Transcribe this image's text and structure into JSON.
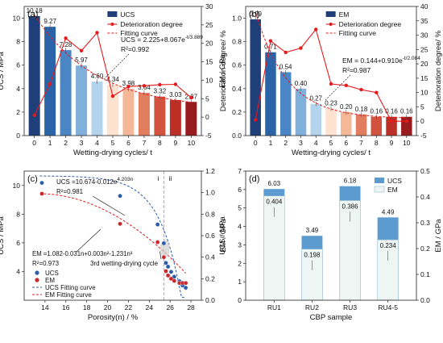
{
  "chart_data": [
    {
      "type": "bar",
      "panel": "(a)",
      "xlabel": "Wetting-drying cycles/ t",
      "ylabel": "UCS / MPa",
      "y2label": "Deterioration degree/ %",
      "categories": [
        0,
        1,
        2,
        3,
        4,
        5,
        6,
        7,
        8,
        9,
        10
      ],
      "ylim": [
        0,
        11
      ],
      "yticks": [
        0,
        2,
        4,
        6,
        8,
        10
      ],
      "y2lim": [
        -5,
        30
      ],
      "y2ticks": [
        -5,
        0,
        5,
        10,
        15,
        20,
        25,
        30
      ],
      "series": [
        {
          "name": "UCS",
          "values": [
            10.18,
            9.27,
            7.28,
            5.97,
            4.6,
            4.34,
            3.98,
            3.64,
            3.32,
            3.03,
            2.87
          ],
          "labels": [
            "10.18",
            "9.27",
            "7.28",
            "5.97",
            "4.60",
            "4.34",
            "3.98",
            "3.64",
            "3.32",
            "3.03",
            "2.87"
          ]
        },
        {
          "name": "Deterioration degree",
          "axis": "right",
          "values": [
            0.5,
            9.0,
            21.4,
            18.0,
            22.9,
            5.7,
            8.3,
            8.5,
            8.8,
            8.9,
            5.3
          ]
        },
        {
          "name": "Fitting curve",
          "formula": "UCS = 2.225+8.067e^(-t/3.889)"
        }
      ],
      "equation": "UCS = 2.225+8.067e",
      "equation_exp": "-t/3.889",
      "r2": "R²=0.992",
      "legend": "top-right"
    },
    {
      "type": "bar",
      "panel": "(b)",
      "xlabel": "Wetting-drying cycles/ t",
      "ylabel": "EM / GPa",
      "y2label": "Deterioration degree/ %",
      "categories": [
        0,
        1,
        2,
        3,
        4,
        5,
        6,
        7,
        8,
        9,
        10
      ],
      "ylim": [
        0,
        1.1
      ],
      "yticks": [
        0,
        0.2,
        0.4,
        0.6,
        0.8,
        1.0
      ],
      "y2lim": [
        -5,
        40
      ],
      "y2ticks": [
        -5,
        0,
        5,
        10,
        15,
        20,
        25,
        30,
        35,
        40
      ],
      "series": [
        {
          "name": "EM",
          "values": [
            0.99,
            0.71,
            0.54,
            0.4,
            0.27,
            0.23,
            0.2,
            0.18,
            0.16,
            0.16,
            0.16
          ],
          "labels": [
            "0.99",
            "0.71",
            "0.54",
            "0.40",
            "0.27",
            "0.23",
            "0.20",
            "0.18",
            "0.16",
            "0.16",
            "0.16"
          ]
        },
        {
          "name": "Deterioration degree",
          "axis": "right",
          "values": [
            0.5,
            28.0,
            24.0,
            25.5,
            32.0,
            13.0,
            12.5,
            11.0,
            10.0,
            0.0,
            0.0
          ]
        },
        {
          "name": "Fitting curve",
          "formula": "EM = 0.144+0.910e^(-t/2.084)"
        }
      ],
      "equation": "EM = 0.144+0.910e",
      "equation_exp": "-t/2.084",
      "r2": "R²=0.987",
      "legend": "top-right"
    },
    {
      "type": "scatter",
      "panel": "(c)",
      "xlabel": "Porosity(n) / %",
      "ylabel": "UCS / MPa",
      "y2label": "EM / GPa",
      "xlim": [
        12,
        29
      ],
      "xticks": [
        14,
        16,
        18,
        20,
        22,
        24,
        26,
        28
      ],
      "ylim": [
        2,
        11
      ],
      "yticks": [
        4,
        6,
        8,
        10
      ],
      "y2lim": [
        0,
        1.2
      ],
      "y2ticks": [
        0.0,
        0.2,
        0.4,
        0.6,
        0.8,
        1.0,
        1.2
      ],
      "series": [
        {
          "name": "UCS",
          "x": [
            13.7,
            21.2,
            24.8,
            25.4,
            25.6,
            25.8,
            26.1,
            26.4,
            26.9,
            27.2,
            27.5
          ],
          "y": [
            10.18,
            9.27,
            7.28,
            5.97,
            4.6,
            4.34,
            3.98,
            3.64,
            3.32,
            3.03,
            2.87
          ]
        },
        {
          "name": "EM",
          "axis": "right",
          "x": [
            13.7,
            21.2,
            24.8,
            25.4,
            25.6,
            25.8,
            26.1,
            26.4,
            26.9,
            27.2,
            27.5
          ],
          "y": [
            0.99,
            0.71,
            0.54,
            0.4,
            0.27,
            0.23,
            0.2,
            0.18,
            0.16,
            0.16,
            0.16
          ]
        },
        {
          "name": "UCS Fitting curve"
        },
        {
          "name": "EM Fitting curve"
        }
      ],
      "eq_ucs": "UCS =10.674-0.012e",
      "eq_ucs_exp": "4.203n",
      "r2_ucs": "R²=0.981",
      "eq_em": "EM =1.082-0.031n+0.003n²-1.231n³",
      "r2_em": "R²=0.973",
      "annotation": "3rd wetting-drying cycle",
      "zone_labels": [
        "i",
        "ii"
      ],
      "divider_x": 25.4,
      "legend": "bottom-left"
    },
    {
      "type": "bar",
      "panel": "(d)",
      "xlabel": "CBP sample",
      "ylabel": "UCS / MPa",
      "y2label": "EM / GPa",
      "categories": [
        "RU1",
        "RU2",
        "RU3",
        "RU4-5"
      ],
      "ylim": [
        0,
        7
      ],
      "yticks": [
        0,
        1,
        2,
        3,
        4,
        5,
        6,
        7
      ],
      "y2lim": [
        0,
        0.5
      ],
      "y2ticks": [
        0.0,
        0.1,
        0.2,
        0.3,
        0.4,
        0.5
      ],
      "series": [
        {
          "name": "UCS",
          "values": [
            6.03,
            3.49,
            6.18,
            4.49
          ],
          "labels": [
            "6.03",
            "3.49",
            "6.18",
            "4.49"
          ]
        },
        {
          "name": "EM",
          "axis": "right",
          "values": [
            0.404,
            0.198,
            0.386,
            0.234
          ],
          "labels": [
            "0.404",
            "0.198",
            "0.386",
            "0.234"
          ]
        }
      ],
      "legend": "top-right"
    }
  ],
  "colors": {
    "ucs_blues": [
      "#1f3f7a",
      "#2b63a8",
      "#4a86c5",
      "#7fb1dc",
      "#b4d3ec",
      "#fde2d0",
      "#f4b899",
      "#e27d60",
      "#d2533d",
      "#bb2f27",
      "#981b1e"
    ],
    "em_blues": [
      "#1f3f7a",
      "#2b63a8",
      "#4a86c5",
      "#7fb1dc",
      "#b4d3ec",
      "#fde2d0",
      "#f4b899",
      "#e27d60",
      "#d2533d",
      "#bb2f27",
      "#981b1e"
    ],
    "deterioration": "#e41a1c",
    "fit_red": "#e41a1c",
    "fit_blue": "#2a5caa",
    "d_ucs": "#5b9bd0",
    "d_em": "#eef6f4"
  }
}
